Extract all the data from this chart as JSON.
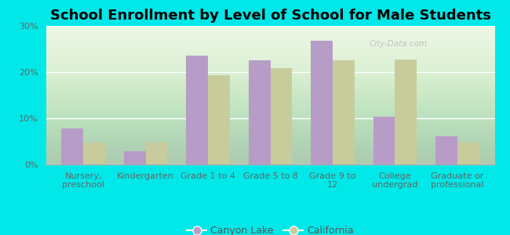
{
  "title": "School Enrollment by Level of School for Male Students",
  "categories": [
    "Nursery,\npreschool",
    "Kindergarten",
    "Grade 1 to 4",
    "Grade 5 to 8",
    "Grade 9 to\n12",
    "College\nundergrad",
    "Graduate or\nprofessional"
  ],
  "canyon_lake": [
    7.8,
    2.8,
    23.5,
    22.5,
    26.8,
    10.4,
    6.1
  ],
  "california": [
    4.8,
    4.8,
    19.3,
    20.8,
    22.5,
    22.7,
    4.8
  ],
  "canyon_lake_color": "#b89cc8",
  "california_color": "#c8cc9c",
  "background_color": "#00e8e8",
  "plot_bg_color": "#e8f5e0",
  "ylim": [
    0,
    30
  ],
  "yticks": [
    0,
    10,
    20,
    30
  ],
  "ytick_labels": [
    "0%",
    "10%",
    "20%",
    "30%"
  ],
  "bar_width": 0.35,
  "legend_labels": [
    "Canyon Lake",
    "California"
  ],
  "title_fontsize": 13,
  "tick_fontsize": 8,
  "legend_fontsize": 9,
  "watermark": "City-Data.com"
}
